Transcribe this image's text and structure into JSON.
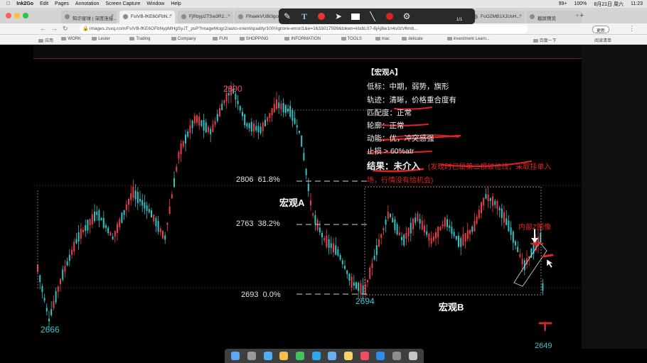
{
  "menubar": {
    "apple": "",
    "items": [
      "Ink2Go",
      "Edit",
      "Pages",
      "Annotation",
      "Screen Capture",
      "Window",
      "Help"
    ],
    "battery": "99+",
    "percent": "100%",
    "date": "8月21日 周六",
    "time": "11:23"
  },
  "tabs": [
    {
      "label": "知识星球 | 深度连接...",
      "active": false
    },
    {
      "label": "FsIVB-fKE6GFbN...",
      "active": true
    },
    {
      "label": "FjRbyp2TSw3R2...",
      "active": false
    },
    {
      "label": "FlhaekVUBl3gcr...",
      "active": false
    },
    {
      "label": "FoOZMB1XJUsH...",
      "active": false
    },
    {
      "label": "截屏预览",
      "active": false
    }
  ],
  "address": {
    "url": "images.zsxq.com/FsIVB-fKE6GFbNypMHgSyJT_psP?imageMogr2/auto-orient/quality/100!/ignore-error/1&e=1633017599&token=kIxbL07-8jAj8w1n4s0zV6mb...",
    "update_label": "更新"
  },
  "bookmarks": [
    "应用",
    "WORK",
    "Lester",
    "Trading",
    "Company",
    "FUN",
    "SHOPPING",
    "INFORMATION",
    "TOOLS",
    "mac",
    "delicate",
    "investment Learn...",
    "百度一下"
  ],
  "bookmarks_right": "阅读清单",
  "toolbar": {
    "page_indicator": "1/1",
    "tools": [
      "pen-icon",
      "text-icon",
      "color-icon",
      "pointer-icon",
      "rect-icon",
      "line-icon",
      "record-icon",
      "settings-icon"
    ]
  },
  "chart": {
    "high_label": "2890",
    "low_left_label": "2666",
    "low_mid_label": "2694",
    "low_right_label": "2649",
    "fib": [
      {
        "price": "2806",
        "pct": "61.8%",
        "frac": 0.618
      },
      {
        "price": "2763",
        "pct": "38.2%",
        "frac": 0.382
      },
      {
        "price": "2693",
        "pct": "0.0%",
        "frac": 0.0
      }
    ],
    "zone_a": "宏观A",
    "zone_b": "宏观B",
    "internal_label": "内部Z图像",
    "colors": {
      "up": "#ee3b4a",
      "down": "#33c4c4",
      "annotation": "#e02424"
    }
  },
  "analysis": {
    "title": "【宏观A】",
    "lines": [
      "低标：中期，弱势，旗形",
      "轨迹：清晰，价格重合度有",
      "匹配度：正常",
      "轮廓：正常",
      "动能：优，冲突感强",
      "止损 > 60%atr"
    ],
    "result_prefix": "结果：",
    "result_value": "未介入",
    "result_note_1": "(发现时已是第二根破位线，采取挂单入",
    "result_note_2": "场，行情没有给机会)"
  },
  "dock": {
    "icons": [
      "finder-icon",
      "launchpad-icon",
      "safari-icon",
      "chrome-icon",
      "wechat-icon",
      "qq-icon",
      "mail-icon",
      "notes-icon",
      "music-icon",
      "appstore-icon",
      "settings-icon",
      "trash-icon"
    ]
  }
}
